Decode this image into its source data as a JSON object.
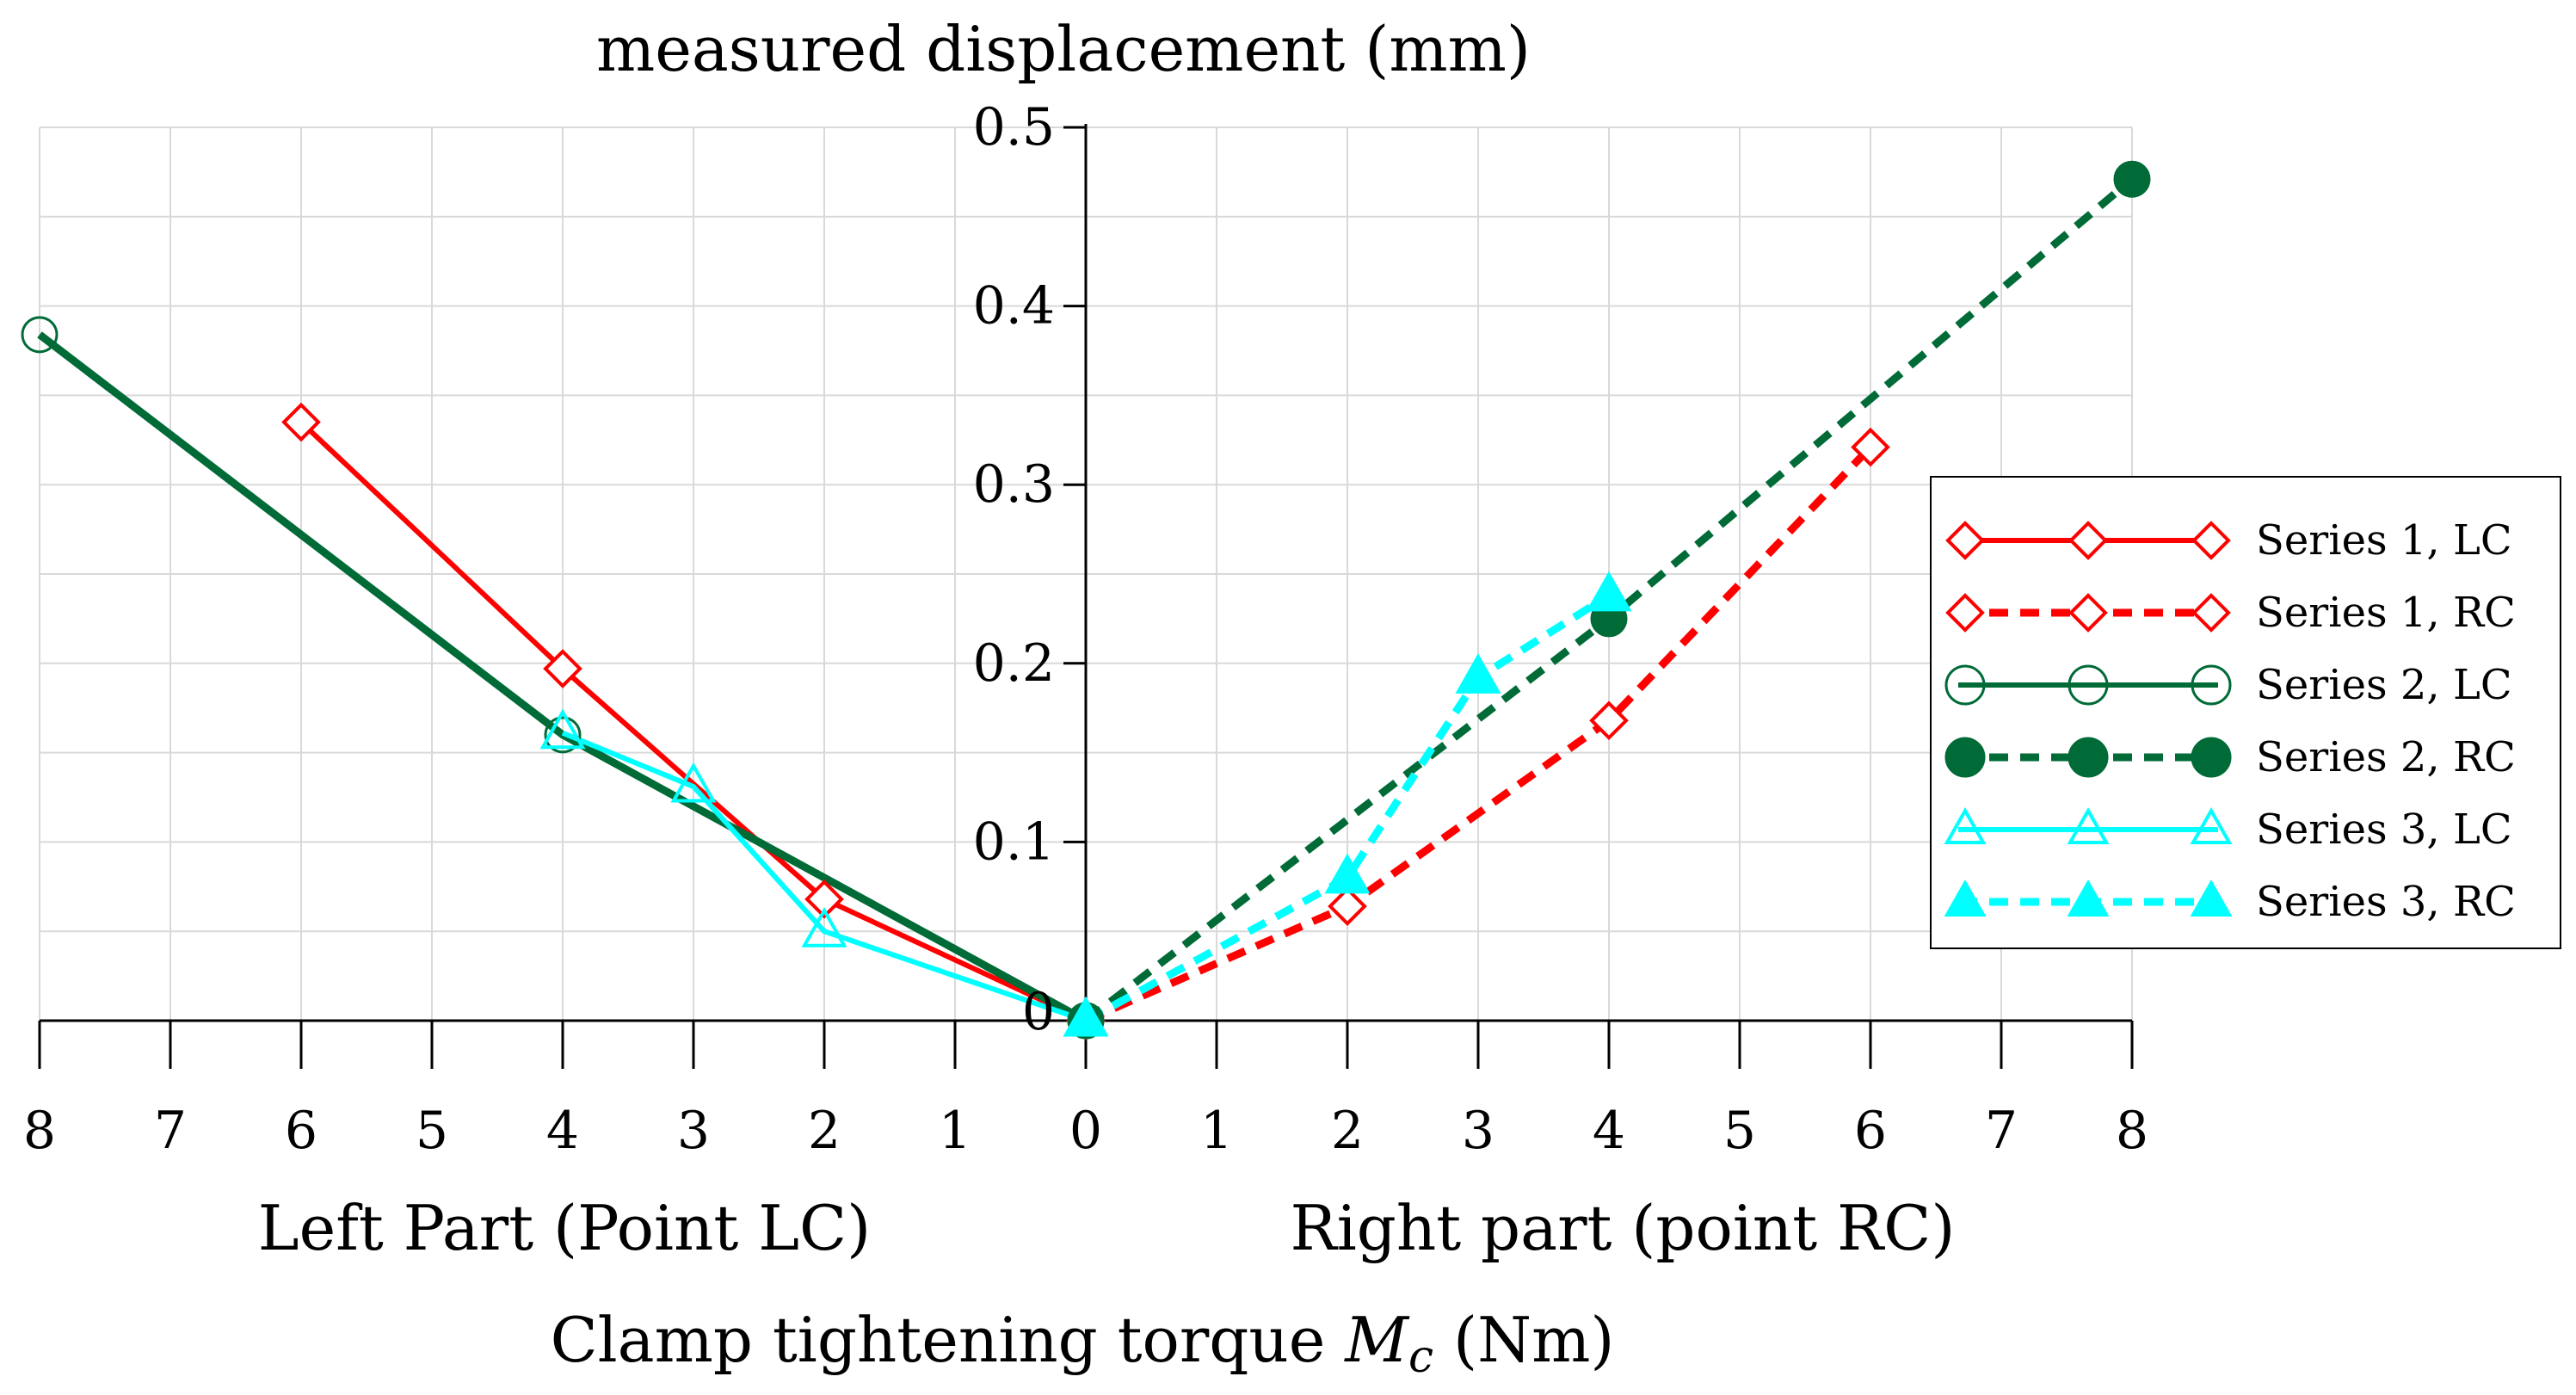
{
  "chart_data": {
    "type": "line",
    "title": "measured displacement (mm)",
    "xlabel_left": "Left Part (Point LC)",
    "xlabel_right": "Right part (point RC)",
    "xlabel_main_prefix": "Clamp tightening torque ",
    "xlabel_main_symbol": "M",
    "xlabel_main_subscript": "c",
    "xlabel_main_suffix": " (Nm)",
    "x_ticks_left": [
      "8",
      "7",
      "6",
      "5",
      "4",
      "3",
      "2",
      "1",
      "0"
    ],
    "x_ticks_right": [
      "1",
      "2",
      "3",
      "4",
      "5",
      "6",
      "7",
      "8"
    ],
    "y_ticks": [
      "0",
      "0.1",
      "0.2",
      "0.3",
      "0.4",
      "0.5"
    ],
    "xlim_left": [
      0,
      8
    ],
    "xlim_right": [
      0,
      8
    ],
    "ylim": [
      0,
      0.5
    ],
    "grid": true,
    "legend_position": "right",
    "series": [
      {
        "name": "Series 1, LC",
        "side": "left",
        "color": "#ff0000",
        "marker": "diamond-open",
        "dashed": false,
        "x": [
          6,
          4,
          2,
          0
        ],
        "y": [
          0.335,
          0.197,
          0.068,
          0
        ]
      },
      {
        "name": "Series 1, RC",
        "side": "right",
        "color": "#ff0000",
        "marker": "diamond-open",
        "dashed": true,
        "x": [
          0,
          2,
          4,
          6
        ],
        "y": [
          0,
          0.064,
          0.168,
          0.321
        ]
      },
      {
        "name": "Series 2, LC",
        "side": "left",
        "color": "#006b37",
        "marker": "circle-open",
        "dashed": false,
        "x": [
          8,
          4,
          0
        ],
        "y": [
          0.384,
          0.16,
          0
        ]
      },
      {
        "name": "Series 2, RC",
        "side": "right",
        "color": "#006b37",
        "marker": "circle-filled",
        "dashed": true,
        "x": [
          0,
          4,
          8
        ],
        "y": [
          0,
          0.225,
          0.471
        ]
      },
      {
        "name": "Series 3, LC",
        "side": "left",
        "color": "#00ffff",
        "marker": "triangle-open",
        "dashed": false,
        "x": [
          4,
          3,
          2,
          0
        ],
        "y": [
          0.161,
          0.131,
          0.05,
          0
        ]
      },
      {
        "name": "Series 3, RC",
        "side": "right",
        "color": "#00ffff",
        "marker": "triangle-filled",
        "dashed": true,
        "x": [
          0,
          2,
          3,
          4
        ],
        "y": [
          0,
          0.08,
          0.192,
          0.238
        ]
      }
    ]
  }
}
